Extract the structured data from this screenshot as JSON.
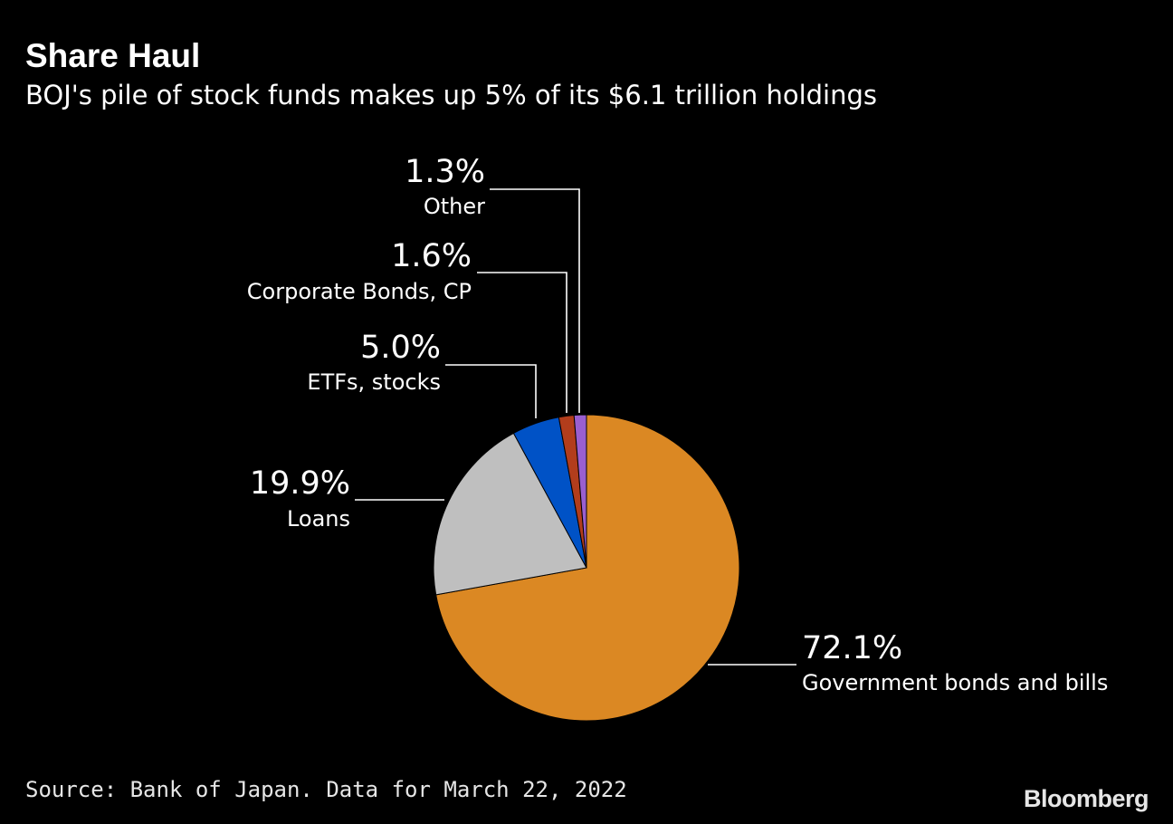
{
  "header": {
    "title": "Share Haul",
    "subtitle": "BOJ's pile of stock funds makes up 5% of its $6.1 trillion holdings"
  },
  "chart_data": {
    "type": "pie",
    "title": "Share Haul",
    "subtitle": "BOJ's pile of stock funds makes up 5% of its $6.1 trillion holdings",
    "start": "12 o'clock",
    "direction": "clockwise",
    "slices": [
      {
        "label": "Government bonds and bills",
        "value": 72.1,
        "display": "72.1%",
        "color": "#db8823"
      },
      {
        "label": "Loans",
        "value": 19.9,
        "display": "19.9%",
        "color": "#bfbfbf"
      },
      {
        "label": "ETFs, stocks",
        "value": 5.0,
        "display": "5.0%",
        "color": "#0052c6"
      },
      {
        "label": "Corporate Bonds, CP",
        "value": 1.6,
        "display": "1.6%",
        "color": "#b23d1c"
      },
      {
        "label": "Other",
        "value": 1.3,
        "display": "1.3%",
        "color": "#9a5fd0"
      }
    ],
    "leader_line_color": "#ffffff"
  },
  "footer": {
    "source": "Source: Bank of Japan. Data for March 22, 2022",
    "brand": "Bloomberg"
  }
}
